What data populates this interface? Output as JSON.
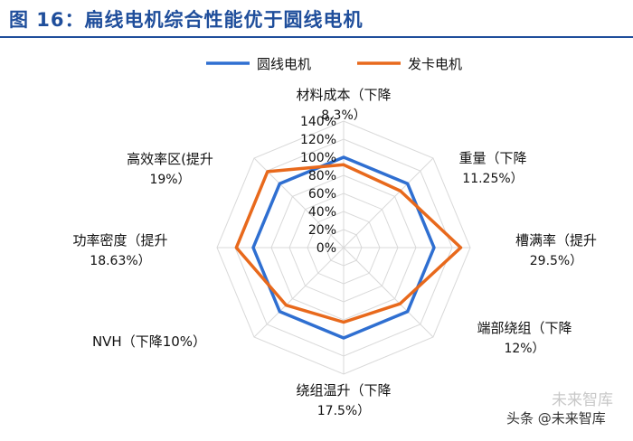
{
  "figure": {
    "title": "图 16：扁线电机综合性能优于圆线电机",
    "source": "头条 @未来智库",
    "watermark": "未来智库"
  },
  "chart_data": {
    "type": "radar",
    "title": "",
    "axes": [
      {
        "label": "材料成本（下降",
        "value_label": "8.3%）"
      },
      {
        "label": "重量（下降",
        "value_label": "11.25%）"
      },
      {
        "label": "槽满率（提升",
        "value_label": "29.5%）"
      },
      {
        "label": "端部绕组（下降",
        "value_label": "12%）"
      },
      {
        "label": "绕组温升（下降",
        "value_label": "17.5%）"
      },
      {
        "label": "NVH（下降10%）",
        "value_label": ""
      },
      {
        "label": "功率密度（提升",
        "value_label": "18.63%）"
      },
      {
        "label": "高效率区(提升",
        "value_label": "19%）"
      }
    ],
    "radial_ticks": [
      "0%",
      "20%",
      "40%",
      "60%",
      "80%",
      "100%",
      "120%",
      "140%"
    ],
    "rmax": 140,
    "grid": true,
    "legend_position": "top",
    "series": [
      {
        "name": "圆线电机",
        "color": "#2f6fd1",
        "values": [
          100,
          100,
          100,
          100,
          100,
          100,
          100,
          100
        ]
      },
      {
        "name": "发卡电机",
        "color": "#e8691c",
        "values": [
          91.7,
          88.75,
          129.5,
          88,
          82.5,
          90,
          118.63,
          119
        ]
      }
    ]
  }
}
